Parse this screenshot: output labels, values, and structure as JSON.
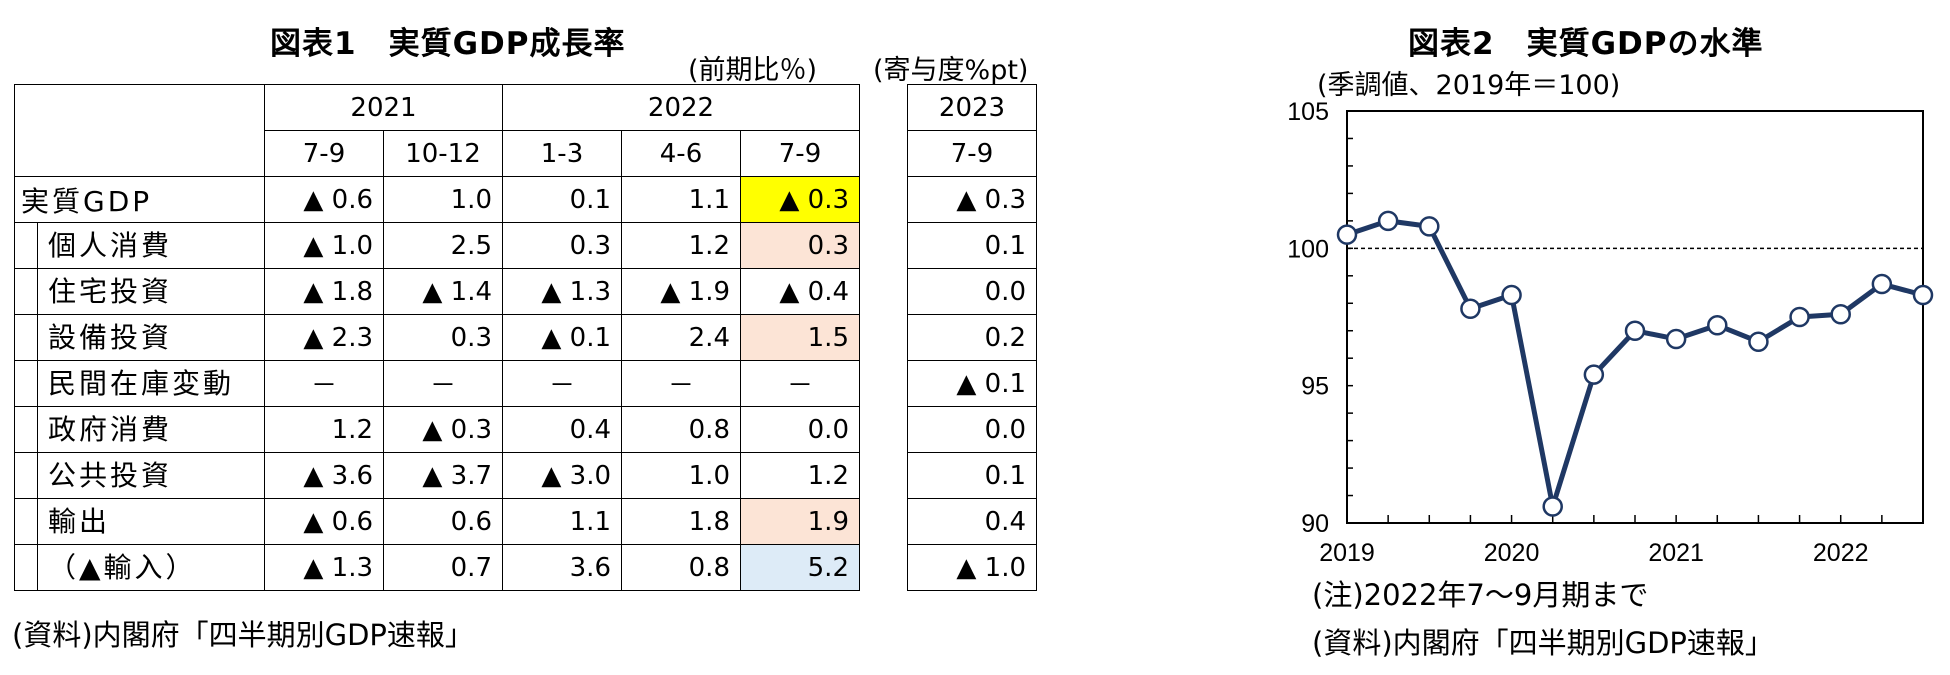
{
  "figure1": {
    "title": "図表1　実質GDP成長率",
    "unit_left": "(前期比％)",
    "unit_right": "(寄与度%pt)",
    "year_groups": [
      "2021",
      "2022",
      "2023"
    ],
    "quarters": [
      "7-9",
      "10-12",
      "1-3",
      "4-6",
      "7-9"
    ],
    "contrib_quarter": "7-9",
    "rows": [
      {
        "label": "実質GDP",
        "values": [
          "▲ 0.6",
          "1.0",
          "0.1",
          "1.1",
          "▲ 0.3"
        ],
        "contrib": "▲ 0.3"
      },
      {
        "label": "個人消費",
        "values": [
          "▲ 1.0",
          "2.5",
          "0.3",
          "1.2",
          "0.3"
        ],
        "contrib": "0.1"
      },
      {
        "label": "住宅投資",
        "values": [
          "▲ 1.8",
          "▲ 1.4",
          "▲ 1.3",
          "▲ 1.9",
          "▲ 0.4"
        ],
        "contrib": "0.0"
      },
      {
        "label": "設備投資",
        "values": [
          "▲ 2.3",
          "0.3",
          "▲ 0.1",
          "2.4",
          "1.5"
        ],
        "contrib": "0.2"
      },
      {
        "label": "民間在庫変動",
        "values": [
          "－",
          "－",
          "－",
          "－",
          "－"
        ],
        "contrib": "▲ 0.1"
      },
      {
        "label": "政府消費",
        "values": [
          "1.2",
          "▲ 0.3",
          "0.4",
          "0.8",
          "0.0"
        ],
        "contrib": "0.0"
      },
      {
        "label": "公共投資",
        "values": [
          "▲ 3.6",
          "▲ 3.7",
          "▲ 3.0",
          "1.0",
          "1.2"
        ],
        "contrib": "0.1"
      },
      {
        "label": "輸出",
        "values": [
          "▲ 0.6",
          "0.6",
          "1.1",
          "1.8",
          "1.9"
        ],
        "contrib": "0.4"
      },
      {
        "label": "（▲輸入）",
        "values": [
          "▲ 1.3",
          "0.7",
          "3.6",
          "0.8",
          "5.2"
        ],
        "contrib": "▲ 1.0"
      }
    ],
    "highlight_colors": {
      "yellow": "#ffff00",
      "peach": "#fce4d6",
      "blue": "#ddebf7"
    },
    "source": "(資料)内閣府「四半期別GDP速報」"
  },
  "figure2": {
    "title": "図表2　実質GDPの水準",
    "unit": "(季調値、2019年＝100)",
    "note": "(注)2022年7～9月期まで",
    "source": "(資料)内閣府「四半期別GDP速報」"
  },
  "chart_data": {
    "type": "line",
    "title": "図表2　実質GDPの水準",
    "ylabel": "(季調値、2019年＝100)",
    "xlabel": "",
    "ylim": [
      90,
      105
    ],
    "yticks": [
      90,
      95,
      100,
      105
    ],
    "xlim": [
      0,
      14
    ],
    "xticks": [
      {
        "label": "2019",
        "at": 0
      },
      {
        "label": "2020",
        "at": 4
      },
      {
        "label": "2021",
        "at": 8
      },
      {
        "label": "2022",
        "at": 12
      }
    ],
    "reference_line": 100,
    "line_color": "#1f3864",
    "series": [
      {
        "name": "実質GDP",
        "values": [
          100.5,
          101.0,
          100.8,
          97.8,
          98.3,
          90.6,
          95.4,
          97.0,
          96.7,
          97.2,
          96.6,
          97.5,
          97.6,
          98.7,
          98.3
        ]
      }
    ]
  }
}
